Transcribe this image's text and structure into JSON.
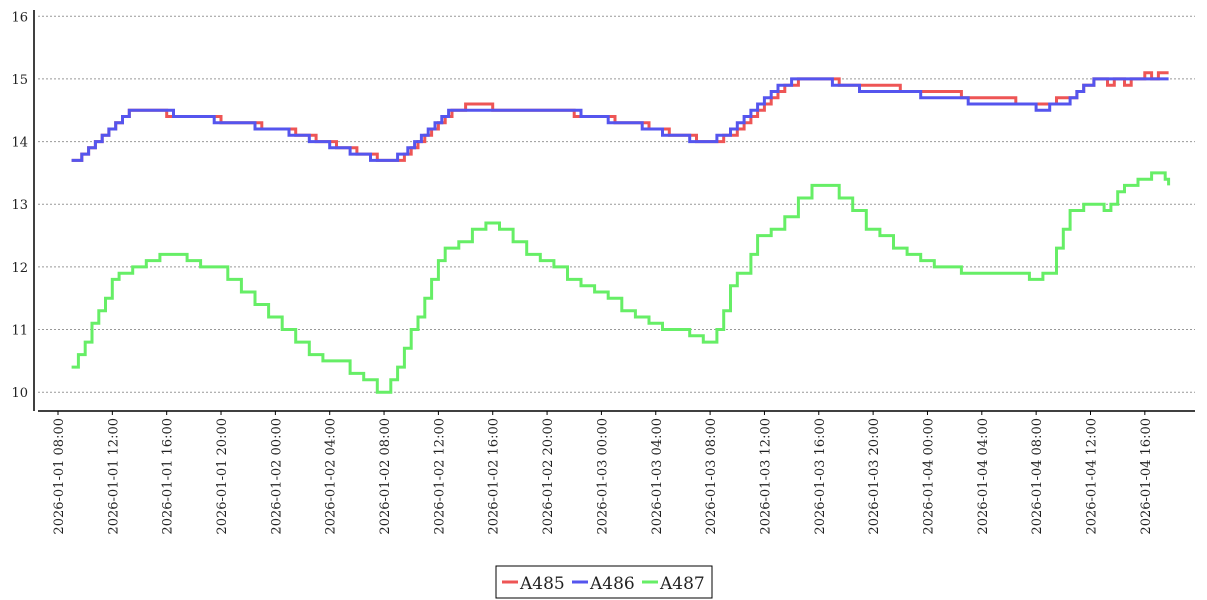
{
  "chart_data": {
    "type": "line",
    "step": true,
    "x_start": "2026-01-01 08:00",
    "x_end": "2026-01-04 18:00",
    "ylim": [
      9.7,
      16.1
    ],
    "yticks": [
      10,
      11,
      12,
      13,
      14,
      15,
      16
    ],
    "xticks": [
      "2026-01-01 08:00",
      "2026-01-01 12:00",
      "2026-01-01 16:00",
      "2026-01-01 20:00",
      "2026-01-02 00:00",
      "2026-01-02 04:00",
      "2026-01-02 08:00",
      "2026-01-02 12:00",
      "2026-01-02 16:00",
      "2026-01-02 20:00",
      "2026-01-03 00:00",
      "2026-01-03 04:00",
      "2026-01-03 08:00",
      "2026-01-03 12:00",
      "2026-01-03 16:00",
      "2026-01-03 20:00",
      "2026-01-04 00:00",
      "2026-01-04 04:00",
      "2026-01-04 08:00",
      "2026-01-04 12:00",
      "2026-01-04 16:00"
    ],
    "grid": "horizontal-dotted",
    "legend_position": "bottom-center",
    "series": [
      {
        "name": "A485",
        "color": "#ee5555",
        "points": [
          [
            "2026-01-01 09:00",
            13.7
          ],
          [
            "2026-01-01 09:45",
            13.8
          ],
          [
            "2026-01-01 10:15",
            13.9
          ],
          [
            "2026-01-01 10:45",
            14.0
          ],
          [
            "2026-01-01 11:15",
            14.1
          ],
          [
            "2026-01-01 11:45",
            14.2
          ],
          [
            "2026-01-01 12:15",
            14.3
          ],
          [
            "2026-01-01 12:45",
            14.4
          ],
          [
            "2026-01-01 13:15",
            14.5
          ],
          [
            "2026-01-01 16:00",
            14.4
          ],
          [
            "2026-01-01 20:00",
            14.3
          ],
          [
            "2026-01-01 23:00",
            14.2
          ],
          [
            "2026-01-02 01:30",
            14.1
          ],
          [
            "2026-01-02 03:00",
            14.0
          ],
          [
            "2026-01-02 04:30",
            13.9
          ],
          [
            "2026-01-02 06:00",
            13.8
          ],
          [
            "2026-01-02 07:30",
            13.7
          ],
          [
            "2026-01-02 09:30",
            13.8
          ],
          [
            "2026-01-02 10:00",
            13.9
          ],
          [
            "2026-01-02 10:30",
            14.0
          ],
          [
            "2026-01-02 11:00",
            14.1
          ],
          [
            "2026-01-02 11:30",
            14.2
          ],
          [
            "2026-01-02 12:00",
            14.3
          ],
          [
            "2026-01-02 12:30",
            14.4
          ],
          [
            "2026-01-02 13:00",
            14.5
          ],
          [
            "2026-01-02 14:00",
            14.6
          ],
          [
            "2026-01-02 16:00",
            14.5
          ],
          [
            "2026-01-02 22:00",
            14.4
          ],
          [
            "2026-01-03 01:00",
            14.3
          ],
          [
            "2026-01-03 03:30",
            14.2
          ],
          [
            "2026-01-03 05:00",
            14.1
          ],
          [
            "2026-01-03 07:00",
            14.0
          ],
          [
            "2026-01-03 09:00",
            14.1
          ],
          [
            "2026-01-03 10:00",
            14.2
          ],
          [
            "2026-01-03 10:30",
            14.3
          ],
          [
            "2026-01-03 11:00",
            14.4
          ],
          [
            "2026-01-03 11:30",
            14.5
          ],
          [
            "2026-01-03 12:00",
            14.6
          ],
          [
            "2026-01-03 12:30",
            14.7
          ],
          [
            "2026-01-03 13:00",
            14.8
          ],
          [
            "2026-01-03 13:30",
            14.9
          ],
          [
            "2026-01-03 14:30",
            15.0
          ],
          [
            "2026-01-03 17:30",
            14.9
          ],
          [
            "2026-01-03 22:00",
            14.8
          ],
          [
            "2026-01-04 02:30",
            14.7
          ],
          [
            "2026-01-04 06:30",
            14.6
          ],
          [
            "2026-01-04 09:30",
            14.7
          ],
          [
            "2026-01-04 11:00",
            14.8
          ],
          [
            "2026-01-04 11:30",
            14.9
          ],
          [
            "2026-01-04 12:15",
            15.0
          ],
          [
            "2026-01-04 13:15",
            14.9
          ],
          [
            "2026-01-04 13:45",
            15.0
          ],
          [
            "2026-01-04 14:30",
            14.9
          ],
          [
            "2026-01-04 15:00",
            15.0
          ],
          [
            "2026-01-04 16:00",
            15.1
          ],
          [
            "2026-01-04 16:30",
            15.0
          ],
          [
            "2026-01-04 17:00",
            15.1
          ],
          [
            "2026-01-04 17:45",
            15.1
          ]
        ]
      },
      {
        "name": "A486",
        "color": "#5555ee",
        "points": [
          [
            "2026-01-01 09:00",
            13.7
          ],
          [
            "2026-01-01 09:45",
            13.8
          ],
          [
            "2026-01-01 10:15",
            13.9
          ],
          [
            "2026-01-01 10:45",
            14.0
          ],
          [
            "2026-01-01 11:15",
            14.1
          ],
          [
            "2026-01-01 11:45",
            14.2
          ],
          [
            "2026-01-01 12:15",
            14.3
          ],
          [
            "2026-01-01 12:45",
            14.4
          ],
          [
            "2026-01-01 13:15",
            14.5
          ],
          [
            "2026-01-01 16:30",
            14.4
          ],
          [
            "2026-01-01 19:30",
            14.3
          ],
          [
            "2026-01-01 22:30",
            14.2
          ],
          [
            "2026-01-02 01:00",
            14.1
          ],
          [
            "2026-01-02 02:30",
            14.0
          ],
          [
            "2026-01-02 04:00",
            13.9
          ],
          [
            "2026-01-02 05:30",
            13.8
          ],
          [
            "2026-01-02 07:00",
            13.7
          ],
          [
            "2026-01-02 09:00",
            13.8
          ],
          [
            "2026-01-02 09:45",
            13.9
          ],
          [
            "2026-01-02 10:15",
            14.0
          ],
          [
            "2026-01-02 10:45",
            14.1
          ],
          [
            "2026-01-02 11:15",
            14.2
          ],
          [
            "2026-01-02 11:45",
            14.3
          ],
          [
            "2026-01-02 12:15",
            14.4
          ],
          [
            "2026-01-02 12:45",
            14.5
          ],
          [
            "2026-01-02 22:30",
            14.4
          ],
          [
            "2026-01-03 00:30",
            14.3
          ],
          [
            "2026-01-03 03:00",
            14.2
          ],
          [
            "2026-01-03 04:30",
            14.1
          ],
          [
            "2026-01-03 06:30",
            14.0
          ],
          [
            "2026-01-03 08:30",
            14.1
          ],
          [
            "2026-01-03 09:30",
            14.2
          ],
          [
            "2026-01-03 10:00",
            14.3
          ],
          [
            "2026-01-03 10:30",
            14.4
          ],
          [
            "2026-01-03 11:00",
            14.5
          ],
          [
            "2026-01-03 11:30",
            14.6
          ],
          [
            "2026-01-03 12:00",
            14.7
          ],
          [
            "2026-01-03 12:30",
            14.8
          ],
          [
            "2026-01-03 13:00",
            14.9
          ],
          [
            "2026-01-03 14:00",
            15.0
          ],
          [
            "2026-01-03 17:00",
            14.9
          ],
          [
            "2026-01-03 19:00",
            14.8
          ],
          [
            "2026-01-03 23:30",
            14.7
          ],
          [
            "2026-01-04 03:00",
            14.6
          ],
          [
            "2026-01-04 08:00",
            14.5
          ],
          [
            "2026-01-04 09:00",
            14.6
          ],
          [
            "2026-01-04 10:30",
            14.7
          ],
          [
            "2026-01-04 11:00",
            14.8
          ],
          [
            "2026-01-04 11:30",
            14.9
          ],
          [
            "2026-01-04 12:15",
            15.0
          ],
          [
            "2026-01-04 17:45",
            15.0
          ]
        ]
      },
      {
        "name": "A487",
        "color": "#66ee66",
        "points": [
          [
            "2026-01-01 09:00",
            10.4
          ],
          [
            "2026-01-01 09:30",
            10.6
          ],
          [
            "2026-01-01 10:00",
            10.8
          ],
          [
            "2026-01-01 10:30",
            11.1
          ],
          [
            "2026-01-01 11:00",
            11.3
          ],
          [
            "2026-01-01 11:30",
            11.5
          ],
          [
            "2026-01-01 12:00",
            11.8
          ],
          [
            "2026-01-01 12:30",
            11.9
          ],
          [
            "2026-01-01 13:30",
            12.0
          ],
          [
            "2026-01-01 14:30",
            12.1
          ],
          [
            "2026-01-01 15:30",
            12.2
          ],
          [
            "2026-01-01 16:30",
            12.2
          ],
          [
            "2026-01-01 17:30",
            12.1
          ],
          [
            "2026-01-01 18:30",
            12.0
          ],
          [
            "2026-01-01 19:30",
            12.0
          ],
          [
            "2026-01-01 20:30",
            11.8
          ],
          [
            "2026-01-01 21:30",
            11.6
          ],
          [
            "2026-01-01 22:30",
            11.4
          ],
          [
            "2026-01-01 23:30",
            11.2
          ],
          [
            "2026-01-02 00:30",
            11.0
          ],
          [
            "2026-01-02 01:30",
            10.8
          ],
          [
            "2026-01-02 02:30",
            10.6
          ],
          [
            "2026-01-02 03:30",
            10.5
          ],
          [
            "2026-01-02 04:30",
            10.5
          ],
          [
            "2026-01-02 05:30",
            10.3
          ],
          [
            "2026-01-02 06:30",
            10.2
          ],
          [
            "2026-01-02 07:30",
            10.0
          ],
          [
            "2026-01-02 08:30",
            10.2
          ],
          [
            "2026-01-02 09:00",
            10.4
          ],
          [
            "2026-01-02 09:30",
            10.7
          ],
          [
            "2026-01-02 10:00",
            11.0
          ],
          [
            "2026-01-02 10:30",
            11.2
          ],
          [
            "2026-01-02 11:00",
            11.5
          ],
          [
            "2026-01-02 11:30",
            11.8
          ],
          [
            "2026-01-02 12:00",
            12.1
          ],
          [
            "2026-01-02 12:30",
            12.3
          ],
          [
            "2026-01-02 13:30",
            12.4
          ],
          [
            "2026-01-02 14:30",
            12.6
          ],
          [
            "2026-01-02 15:30",
            12.7
          ],
          [
            "2026-01-02 16:30",
            12.6
          ],
          [
            "2026-01-02 17:30",
            12.4
          ],
          [
            "2026-01-02 18:30",
            12.2
          ],
          [
            "2026-01-02 19:30",
            12.1
          ],
          [
            "2026-01-02 20:30",
            12.0
          ],
          [
            "2026-01-02 21:30",
            11.8
          ],
          [
            "2026-01-02 22:30",
            11.7
          ],
          [
            "2026-01-02 23:30",
            11.6
          ],
          [
            "2026-01-03 00:30",
            11.5
          ],
          [
            "2026-01-03 01:30",
            11.3
          ],
          [
            "2026-01-03 02:30",
            11.2
          ],
          [
            "2026-01-03 03:30",
            11.1
          ],
          [
            "2026-01-03 04:30",
            11.0
          ],
          [
            "2026-01-03 05:30",
            11.0
          ],
          [
            "2026-01-03 06:30",
            10.9
          ],
          [
            "2026-01-03 07:30",
            10.8
          ],
          [
            "2026-01-03 08:30",
            11.0
          ],
          [
            "2026-01-03 09:00",
            11.3
          ],
          [
            "2026-01-03 09:30",
            11.7
          ],
          [
            "2026-01-03 10:00",
            11.9
          ],
          [
            "2026-01-03 11:00",
            12.2
          ],
          [
            "2026-01-03 11:30",
            12.5
          ],
          [
            "2026-01-03 12:30",
            12.6
          ],
          [
            "2026-01-03 13:30",
            12.8
          ],
          [
            "2026-01-03 14:30",
            13.1
          ],
          [
            "2026-01-03 15:30",
            13.3
          ],
          [
            "2026-01-03 16:30",
            13.3
          ],
          [
            "2026-01-03 17:30",
            13.1
          ],
          [
            "2026-01-03 18:30",
            12.9
          ],
          [
            "2026-01-03 19:30",
            12.6
          ],
          [
            "2026-01-03 20:30",
            12.5
          ],
          [
            "2026-01-03 21:30",
            12.3
          ],
          [
            "2026-01-03 22:30",
            12.2
          ],
          [
            "2026-01-03 23:30",
            12.1
          ],
          [
            "2026-01-04 00:30",
            12.0
          ],
          [
            "2026-01-04 01:30",
            12.0
          ],
          [
            "2026-01-04 02:30",
            11.9
          ],
          [
            "2026-01-04 04:30",
            11.9
          ],
          [
            "2026-01-04 06:30",
            11.9
          ],
          [
            "2026-01-04 07:30",
            11.8
          ],
          [
            "2026-01-04 08:30",
            11.9
          ],
          [
            "2026-01-04 09:30",
            12.3
          ],
          [
            "2026-01-04 10:00",
            12.6
          ],
          [
            "2026-01-04 10:30",
            12.9
          ],
          [
            "2026-01-04 11:30",
            13.0
          ],
          [
            "2026-01-04 12:30",
            13.0
          ],
          [
            "2026-01-04 13:00",
            12.9
          ],
          [
            "2026-01-04 13:30",
            13.0
          ],
          [
            "2026-01-04 14:00",
            13.2
          ],
          [
            "2026-01-04 14:30",
            13.3
          ],
          [
            "2026-01-04 15:30",
            13.4
          ],
          [
            "2026-01-04 16:30",
            13.5
          ],
          [
            "2026-01-04 17:30",
            13.4
          ],
          [
            "2026-01-04 17:45",
            13.3
          ]
        ]
      }
    ]
  }
}
